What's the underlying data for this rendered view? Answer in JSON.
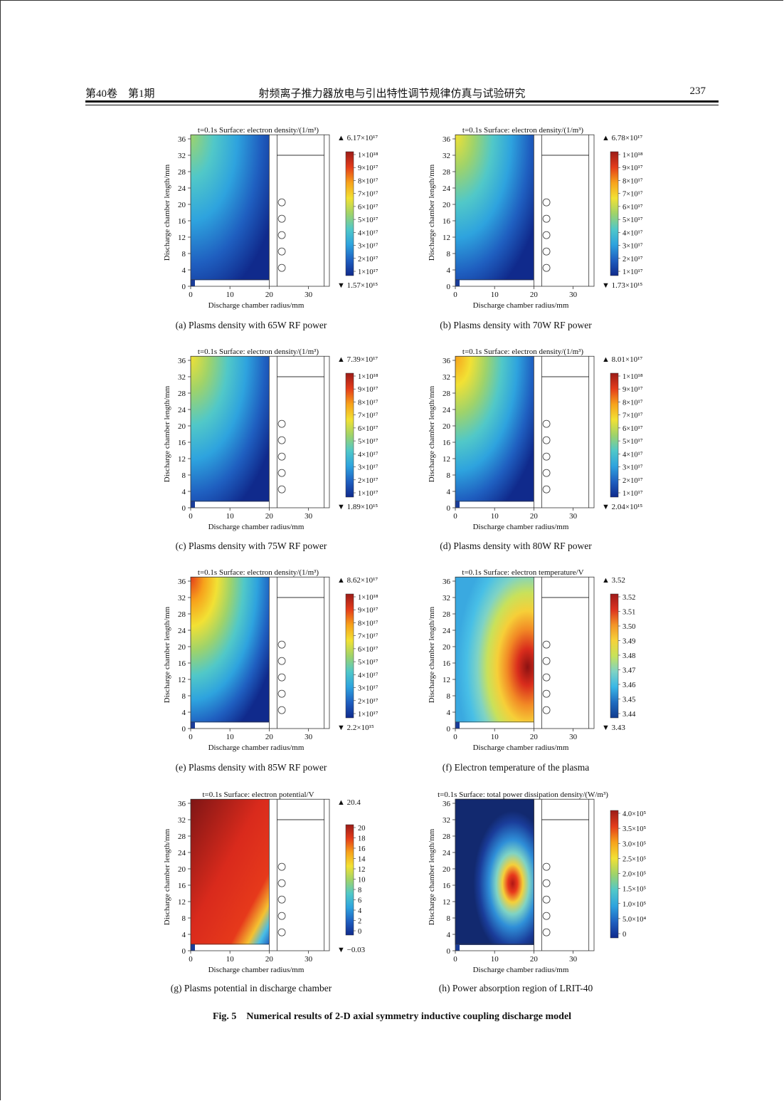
{
  "header": {
    "left": "第40卷　第1期",
    "center": "射频离子推力器放电与引出特性调节规律仿真与试验研究",
    "page": "237"
  },
  "figure_caption": "Fig. 5　Numerical results of 2-D axial symmetry inductive coupling discharge model",
  "chart_data": [
    {
      "type": "heatmap",
      "id": "a",
      "title": "t=0.1s  Surface: electron density/(1/m³)",
      "xlabel": "Discharge chamber radius/mm",
      "ylabel": "Discharge chamber length/mm",
      "x_ticks": [
        "0",
        "10",
        "20",
        "30"
      ],
      "y_ticks": [
        "0",
        "4",
        "8",
        "12",
        "16",
        "20",
        "24",
        "28",
        "32",
        "36"
      ],
      "colorbar_max": "▲ 6.17×10¹⁷",
      "colorbar_min": "▼ 1.57×10¹⁵",
      "colorbar_ticks": [
        "1×10¹⁸",
        "9×10¹⁷",
        "8×10¹⁷",
        "7×10¹⁷",
        "6×10¹⁷",
        "5×10¹⁷",
        "4×10¹⁷",
        "3×10¹⁷",
        "2×10¹⁷",
        "1×10¹⁷"
      ],
      "caption": "(a) Plasms density with 65W RF power"
    },
    {
      "type": "heatmap",
      "id": "b",
      "title": "t=0.1s  Surface: electron density/(1/m³)",
      "xlabel": "Discharge chamber radius/mm",
      "ylabel": "Discharge chamber length/mm",
      "x_ticks": [
        "0",
        "10",
        "20",
        "30"
      ],
      "y_ticks": [
        "0",
        "4",
        "8",
        "12",
        "16",
        "20",
        "24",
        "28",
        "32",
        "36"
      ],
      "colorbar_max": "▲ 6.78×10¹⁷",
      "colorbar_min": "▼ 1.73×10¹⁵",
      "colorbar_ticks": [
        "1×10¹⁸",
        "9×10¹⁷",
        "8×10¹⁷",
        "7×10¹⁷",
        "6×10¹⁷",
        "5×10¹⁷",
        "4×10¹⁷",
        "3×10¹⁷",
        "2×10¹⁷",
        "1×10¹⁷"
      ],
      "caption": "(b) Plasms density with 70W RF power"
    },
    {
      "type": "heatmap",
      "id": "c",
      "title": "t=0.1s  Surface: electron density/(1/m³)",
      "xlabel": "Discharge chamber radius/mm",
      "ylabel": "Discharge chamber length/mm",
      "x_ticks": [
        "0",
        "10",
        "20",
        "30"
      ],
      "y_ticks": [
        "0",
        "4",
        "8",
        "12",
        "16",
        "20",
        "24",
        "28",
        "32",
        "36"
      ],
      "colorbar_max": "▲ 7.39×10¹⁷",
      "colorbar_min": "▼ 1.89×10¹⁵",
      "colorbar_ticks": [
        "1×10¹⁸",
        "9×10¹⁷",
        "8×10¹⁷",
        "7×10¹⁷",
        "6×10¹⁷",
        "5×10¹⁷",
        "4×10¹⁷",
        "3×10¹⁷",
        "2×10¹⁷",
        "1×10¹⁷"
      ],
      "caption": "(c) Plasms density with 75W RF power"
    },
    {
      "type": "heatmap",
      "id": "d",
      "title": "t=0.1s  Surface: electron density/(1/m³)",
      "xlabel": "Discharge chamber radius/mm",
      "ylabel": "Discharge chamber length/mm",
      "x_ticks": [
        "0",
        "10",
        "20",
        "30"
      ],
      "y_ticks": [
        "0",
        "4",
        "8",
        "12",
        "16",
        "20",
        "24",
        "28",
        "32",
        "36"
      ],
      "colorbar_max": "▲ 8.01×10¹⁷",
      "colorbar_min": "▼ 2.04×10¹⁵",
      "colorbar_ticks": [
        "1×10¹⁸",
        "9×10¹⁷",
        "8×10¹⁷",
        "7×10¹⁷",
        "6×10¹⁷",
        "5×10¹⁷",
        "4×10¹⁷",
        "3×10¹⁷",
        "2×10¹⁷",
        "1×10¹⁷"
      ],
      "caption": "(d) Plasms density with 80W RF power"
    },
    {
      "type": "heatmap",
      "id": "e",
      "title": "t=0.1s  Surface: electron density/(1/m³)",
      "xlabel": "Discharge chamber radius/mm",
      "ylabel": "Discharge chamber length/mm",
      "x_ticks": [
        "0",
        "10",
        "20",
        "30"
      ],
      "y_ticks": [
        "0",
        "4",
        "8",
        "12",
        "16",
        "20",
        "24",
        "28",
        "32",
        "36"
      ],
      "colorbar_max": "▲ 8.62×10¹⁷",
      "colorbar_min": "▼ 2.2×10¹⁵",
      "colorbar_ticks": [
        "1×10¹⁸",
        "9×10¹⁷",
        "8×10¹⁷",
        "7×10¹⁷",
        "6×10¹⁷",
        "5×10¹⁷",
        "4×10¹⁷",
        "3×10¹⁷",
        "2×10¹⁷",
        "1×10¹⁷"
      ],
      "caption": "(e) Plasms density with 85W RF power"
    },
    {
      "type": "heatmap",
      "id": "f",
      "title": "t=0.1s  Surface: electron temperature/V",
      "xlabel": "Discharge chamber radius/mm",
      "ylabel": "Discharge chamber length/mm",
      "x_ticks": [
        "0",
        "10",
        "20",
        "30"
      ],
      "y_ticks": [
        "0",
        "4",
        "8",
        "12",
        "16",
        "20",
        "24",
        "28",
        "32",
        "36"
      ],
      "colorbar_max": "▲ 3.52",
      "colorbar_min": "▼ 3.43",
      "colorbar_ticks": [
        "3.52",
        "3.51",
        "3.50",
        "3.49",
        "3.48",
        "3.47",
        "3.46",
        "3.45",
        "3.44"
      ],
      "caption": "(f) Electron temperature of the plasma"
    },
    {
      "type": "heatmap",
      "id": "g",
      "title": "t=0.1s  Surface: electron potential/V",
      "xlabel": "Discharge chamber radius/mm",
      "ylabel": "Discharge chamber length/mm",
      "x_ticks": [
        "0",
        "10",
        "20",
        "30"
      ],
      "y_ticks": [
        "0",
        "4",
        "8",
        "12",
        "16",
        "20",
        "24",
        "28",
        "32",
        "36"
      ],
      "colorbar_max": "▲ 20.4",
      "colorbar_min": "▼ −0.03",
      "colorbar_ticks": [
        "20",
        "18",
        "16",
        "14",
        "12",
        "10",
        "8",
        "6",
        "4",
        "2",
        "0"
      ],
      "caption": "(g) Plasms potential in discharge chamber"
    },
    {
      "type": "heatmap",
      "id": "h",
      "title": "t=0.1s  Surface: total power dissipation density/(W/m³)",
      "xlabel": "Discharge chamber radius/mm",
      "ylabel": "Discharge chamber length/mm",
      "x_ticks": [
        "0",
        "10",
        "20",
        "30"
      ],
      "y_ticks": [
        "0",
        "4",
        "8",
        "12",
        "16",
        "20",
        "24",
        "28",
        "32",
        "36"
      ],
      "colorbar_max": "",
      "colorbar_min": "",
      "colorbar_ticks": [
        "4.0×10⁵",
        "3.5×10⁵",
        "3.0×10⁵",
        "2.5×10⁵",
        "2.0×10⁵",
        "1.5×10⁵",
        "1.0×10⁵",
        "5.0×10⁴",
        "0"
      ],
      "caption": "(h) Power absorption region of LRIT-40"
    }
  ]
}
